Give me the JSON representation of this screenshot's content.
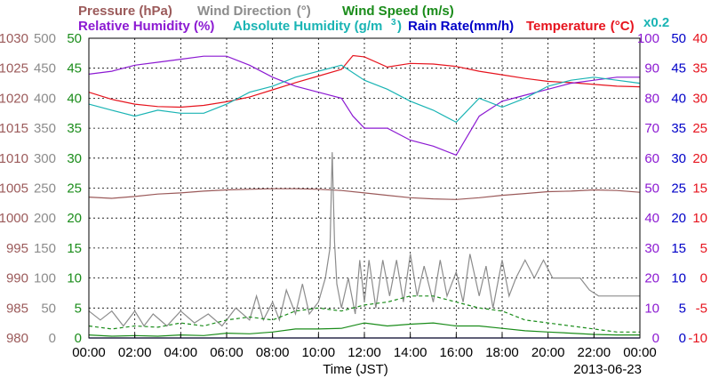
{
  "chart_data": {
    "type": "line",
    "title": "",
    "date_label": "2013-06-23",
    "xlabel": "Time (JST)",
    "x_ticks": [
      "00:00",
      "02:00",
      "04:00",
      "06:00",
      "08:00",
      "10:00",
      "12:00",
      "14:00",
      "16:00",
      "18:00",
      "20:00",
      "22:00",
      "00:00"
    ],
    "grid": true,
    "legend": [
      {
        "text": "Pressure (hPa)",
        "color": "#9b5a5a"
      },
      {
        "text": "Wind Direction",
        "color": "#8c8c8c"
      },
      {
        "text": "(°)",
        "color": "#8c8c8c"
      },
      {
        "text": "Wind Speed (m/s)",
        "color": "#1a8c1a"
      },
      {
        "text": "Relative Humidity (%)",
        "color": "#8c1ad2"
      },
      {
        "text": "Absolute Humidity (g/m",
        "color": "#1ab4b4"
      },
      {
        "text": "3",
        "color": "#1ab4b4"
      },
      {
        "text": ")",
        "color": "#1ab4b4"
      },
      {
        "text": "Rain Rate(mm/h)",
        "color": "#0000c8"
      },
      {
        "text": "Temperature",
        "color": "#e6141e"
      },
      {
        "text": "(°C)",
        "color": "#e6141e"
      },
      {
        "text": "x0.2",
        "color": "#1ab4b4"
      }
    ],
    "axes": [
      {
        "name": "Pressure",
        "unit": "hPa",
        "color": "#9b5a5a",
        "side": "left",
        "min": 980,
        "max": 1030,
        "ticks": [
          "980",
          "985",
          "990",
          "995",
          "1000",
          "1005",
          "1010",
          "1015",
          "1020",
          "1025",
          "1030"
        ]
      },
      {
        "name": "Wind Direction",
        "unit": "°",
        "color": "#8c8c8c",
        "side": "left",
        "min": 0,
        "max": 500,
        "ticks": [
          "0",
          "50",
          "100",
          "150",
          "200",
          "250",
          "300",
          "350",
          "400",
          "450",
          "500"
        ]
      },
      {
        "name": "Wind Speed",
        "unit": "m/s",
        "color": "#1a8c1a",
        "side": "left",
        "min": 0,
        "max": 50,
        "ticks": [
          "0",
          "5",
          "10",
          "15",
          "20",
          "25",
          "30",
          "35",
          "40",
          "45",
          "50"
        ]
      },
      {
        "name": "Relative Humidity",
        "unit": "%",
        "color": "#8c1ad2",
        "side": "right",
        "min": 0,
        "max": 100,
        "ticks": [
          "0",
          "10",
          "20",
          "30",
          "40",
          "50",
          "60",
          "70",
          "80",
          "90",
          "100"
        ]
      },
      {
        "name": "Rain Rate",
        "unit": "mm/h",
        "color": "#0000c8",
        "side": "right",
        "min": 0,
        "max": 50,
        "ticks": [
          "0",
          "5",
          "10",
          "15",
          "20",
          "25",
          "30",
          "35",
          "40",
          "45",
          "50"
        ]
      },
      {
        "name": "Temperature",
        "unit": "°C",
        "color": "#e6141e",
        "side": "right",
        "min": -10,
        "max": 40,
        "ticks": [
          "-10",
          "-5",
          "0",
          "5",
          "10",
          "15",
          "20",
          "25",
          "30",
          "35",
          "40"
        ]
      }
    ],
    "series": [
      {
        "name": "Pressure (hPa)",
        "axis": 0,
        "color": "#9b5a5a",
        "style": "solid",
        "x": [
          0,
          1,
          2,
          3,
          4,
          5,
          6,
          7,
          8,
          9,
          10,
          11,
          12,
          13,
          14,
          15,
          16,
          17,
          18,
          19,
          20,
          21,
          22,
          23,
          24
        ],
        "y": [
          1003.5,
          1003.3,
          1003.6,
          1004.0,
          1004.2,
          1004.5,
          1004.7,
          1004.8,
          1004.9,
          1004.9,
          1004.8,
          1004.6,
          1004.2,
          1003.8,
          1003.4,
          1003.2,
          1003.1,
          1003.4,
          1003.8,
          1004.1,
          1004.4,
          1004.5,
          1004.7,
          1004.6,
          1004.3
        ]
      },
      {
        "name": "Temperature (°C)",
        "axis": 5,
        "color": "#e6141e",
        "style": "solid",
        "x": [
          0,
          1,
          2,
          3,
          4,
          5,
          6,
          7,
          8,
          9,
          10,
          11,
          11.5,
          12,
          13,
          14,
          15,
          16,
          17,
          18,
          19,
          20,
          21,
          22,
          23,
          24
        ],
        "y": [
          31,
          29.8,
          29,
          28.6,
          28.5,
          28.8,
          29.4,
          30.2,
          31.4,
          32.6,
          33.7,
          34.8,
          37.1,
          36.9,
          35.2,
          35.8,
          35.7,
          35.3,
          34.5,
          33.9,
          33.3,
          32.8,
          32.6,
          32.3,
          32.0,
          31.9
        ]
      },
      {
        "name": "Relative Humidity (%)",
        "axis": 3,
        "color": "#8c1ad2",
        "style": "solid",
        "x": [
          0,
          1,
          2,
          3,
          4,
          5,
          6,
          7,
          8,
          9,
          10,
          11,
          11.5,
          12,
          13,
          14,
          15,
          16,
          17,
          18,
          19,
          20,
          21,
          22,
          23,
          24
        ],
        "y": [
          88,
          89,
          91,
          92,
          93,
          94,
          94,
          91,
          87,
          84,
          82,
          80,
          74,
          70,
          70,
          66,
          64,
          61,
          74,
          79,
          81,
          83,
          85,
          86,
          87,
          87
        ]
      },
      {
        "name": "Absolute Humidity (g/m3) x0.2",
        "axis": 3,
        "color": "#1ab4b4",
        "style": "solid",
        "x": [
          0,
          1,
          2,
          3,
          4,
          5,
          6,
          7,
          8,
          9,
          10,
          11,
          12,
          13,
          14,
          15,
          16,
          17,
          18,
          19,
          20,
          21,
          22,
          23,
          24
        ],
        "y": [
          78,
          76,
          74,
          76,
          75,
          75,
          78,
          82,
          84,
          87,
          89,
          91,
          86,
          83,
          79,
          76,
          72,
          80,
          77,
          80,
          84,
          86,
          87,
          86,
          85
        ]
      },
      {
        "name": "Wind Direction (°)",
        "axis": 1,
        "color": "#8c8c8c",
        "style": "solid",
        "x": [
          0,
          0.5,
          1.0,
          1.5,
          2.0,
          2.4,
          2.8,
          3.4,
          4.0,
          4.6,
          5.2,
          5.8,
          6.4,
          7.0,
          7.3,
          7.6,
          8.0,
          8.3,
          8.6,
          9.0,
          9.3,
          9.6,
          10.0,
          10.3,
          10.5,
          10.6,
          10.7,
          10.8,
          11.0,
          11.3,
          11.6,
          11.8,
          12.0,
          12.2,
          12.5,
          12.8,
          13.1,
          13.4,
          13.7,
          14.0,
          14.3,
          14.6,
          15.0,
          15.3,
          15.6,
          16.0,
          16.3,
          16.6,
          17.0,
          17.3,
          17.6,
          18.0,
          18.3,
          18.6,
          19.0,
          19.4,
          19.8,
          20.2,
          20.6,
          21.0,
          21.4,
          21.8,
          22.2,
          22.6,
          23.0,
          23.4,
          24
        ],
        "y": [
          45,
          30,
          45,
          20,
          45,
          20,
          40,
          20,
          45,
          25,
          40,
          20,
          50,
          30,
          70,
          30,
          60,
          30,
          80,
          40,
          90,
          40,
          60,
          100,
          150,
          310,
          160,
          90,
          50,
          100,
          40,
          130,
          60,
          130,
          50,
          130,
          70,
          130,
          60,
          140,
          70,
          120,
          60,
          130,
          70,
          110,
          60,
          140,
          70,
          120,
          50,
          130,
          70,
          100,
          130,
          100,
          130,
          100,
          100,
          100,
          100,
          80,
          70,
          70,
          70,
          70,
          70
        ]
      },
      {
        "name": "Wind Speed (m/s) solid",
        "axis": 2,
        "color": "#1a8c1a",
        "style": "solid",
        "x": [
          0,
          1,
          2,
          3,
          4,
          5,
          6,
          7,
          8,
          9,
          10,
          11,
          12,
          13,
          14,
          15,
          16,
          17,
          18,
          19,
          20,
          21,
          22,
          23,
          24
        ],
        "y": [
          0.5,
          0.3,
          0.4,
          0.3,
          0.5,
          0.4,
          0.8,
          0.7,
          1.0,
          1.5,
          1.5,
          1.6,
          2.5,
          2.0,
          2.3,
          2.5,
          2.0,
          2.0,
          1.6,
          1.2,
          1.0,
          0.8,
          0.6,
          0.5,
          0.5
        ]
      },
      {
        "name": "Wind Speed (m/s) dashed",
        "axis": 2,
        "color": "#1a8c1a",
        "style": "dashed",
        "x": [
          0,
          1,
          2,
          3,
          4,
          5,
          6,
          7,
          8,
          9,
          10,
          11,
          12,
          13,
          14,
          15,
          16,
          17,
          18,
          19,
          20,
          21,
          22,
          23,
          24
        ],
        "y": [
          2,
          1.5,
          2,
          1.8,
          2.5,
          2,
          3,
          3.5,
          3,
          4.5,
          5,
          4.5,
          5.5,
          6,
          7,
          7,
          6,
          5,
          4.5,
          3,
          2.5,
          2,
          1.5,
          1,
          1
        ]
      },
      {
        "name": "Rain Rate(mm/h)",
        "axis": 4,
        "color": "#0000c8",
        "style": "solid",
        "x": [
          0,
          24
        ],
        "y": [
          0,
          0
        ]
      }
    ]
  }
}
